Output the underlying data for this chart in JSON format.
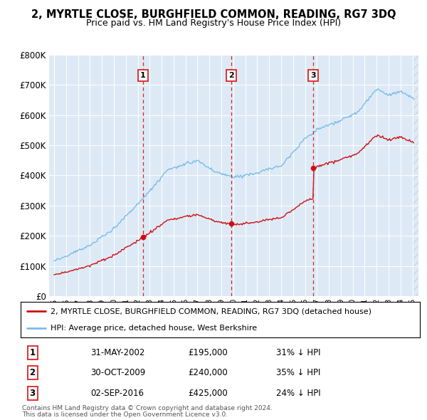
{
  "title": "2, MYRTLE CLOSE, BURGHFIELD COMMON, READING, RG7 3DQ",
  "subtitle": "Price paid vs. HM Land Registry's House Price Index (HPI)",
  "legend_line1": "2, MYRTLE CLOSE, BURGHFIELD COMMON, READING, RG7 3DQ (detached house)",
  "legend_line2": "HPI: Average price, detached house, West Berkshire",
  "footnote1": "Contains HM Land Registry data © Crown copyright and database right 2024.",
  "footnote2": "This data is licensed under the Open Government Licence v3.0.",
  "transactions": [
    {
      "num": 1,
      "date": "31-MAY-2002",
      "price": 195000,
      "hpi_note": "31% ↓ HPI",
      "year": 2002.42
    },
    {
      "num": 2,
      "date": "30-OCT-2009",
      "price": 240000,
      "hpi_note": "35% ↓ HPI",
      "year": 2009.83
    },
    {
      "num": 3,
      "date": "02-SEP-2016",
      "price": 425000,
      "hpi_note": "24% ↓ HPI",
      "year": 2016.67
    }
  ],
  "hpi_color": "#7bbce8",
  "price_color": "#cc1111",
  "bg_color": "#ddeaf6",
  "hatch_color": "#c8d8e8",
  "ylim": [
    0,
    800000
  ],
  "xlim_start": 1994.58,
  "xlim_end": 2025.5,
  "yticks": [
    0,
    100000,
    200000,
    300000,
    400000,
    500000,
    600000,
    700000,
    800000
  ],
  "ytick_labels": [
    "£0",
    "£100K",
    "£200K",
    "£300K",
    "£400K",
    "£500K",
    "£600K",
    "£700K",
    "£800K"
  ],
  "xticks": [
    1995,
    1996,
    1997,
    1998,
    1999,
    2000,
    2001,
    2002,
    2003,
    2004,
    2005,
    2006,
    2007,
    2008,
    2009,
    2010,
    2011,
    2012,
    2013,
    2014,
    2015,
    2016,
    2017,
    2018,
    2019,
    2020,
    2021,
    2022,
    2023,
    2024,
    2025
  ]
}
